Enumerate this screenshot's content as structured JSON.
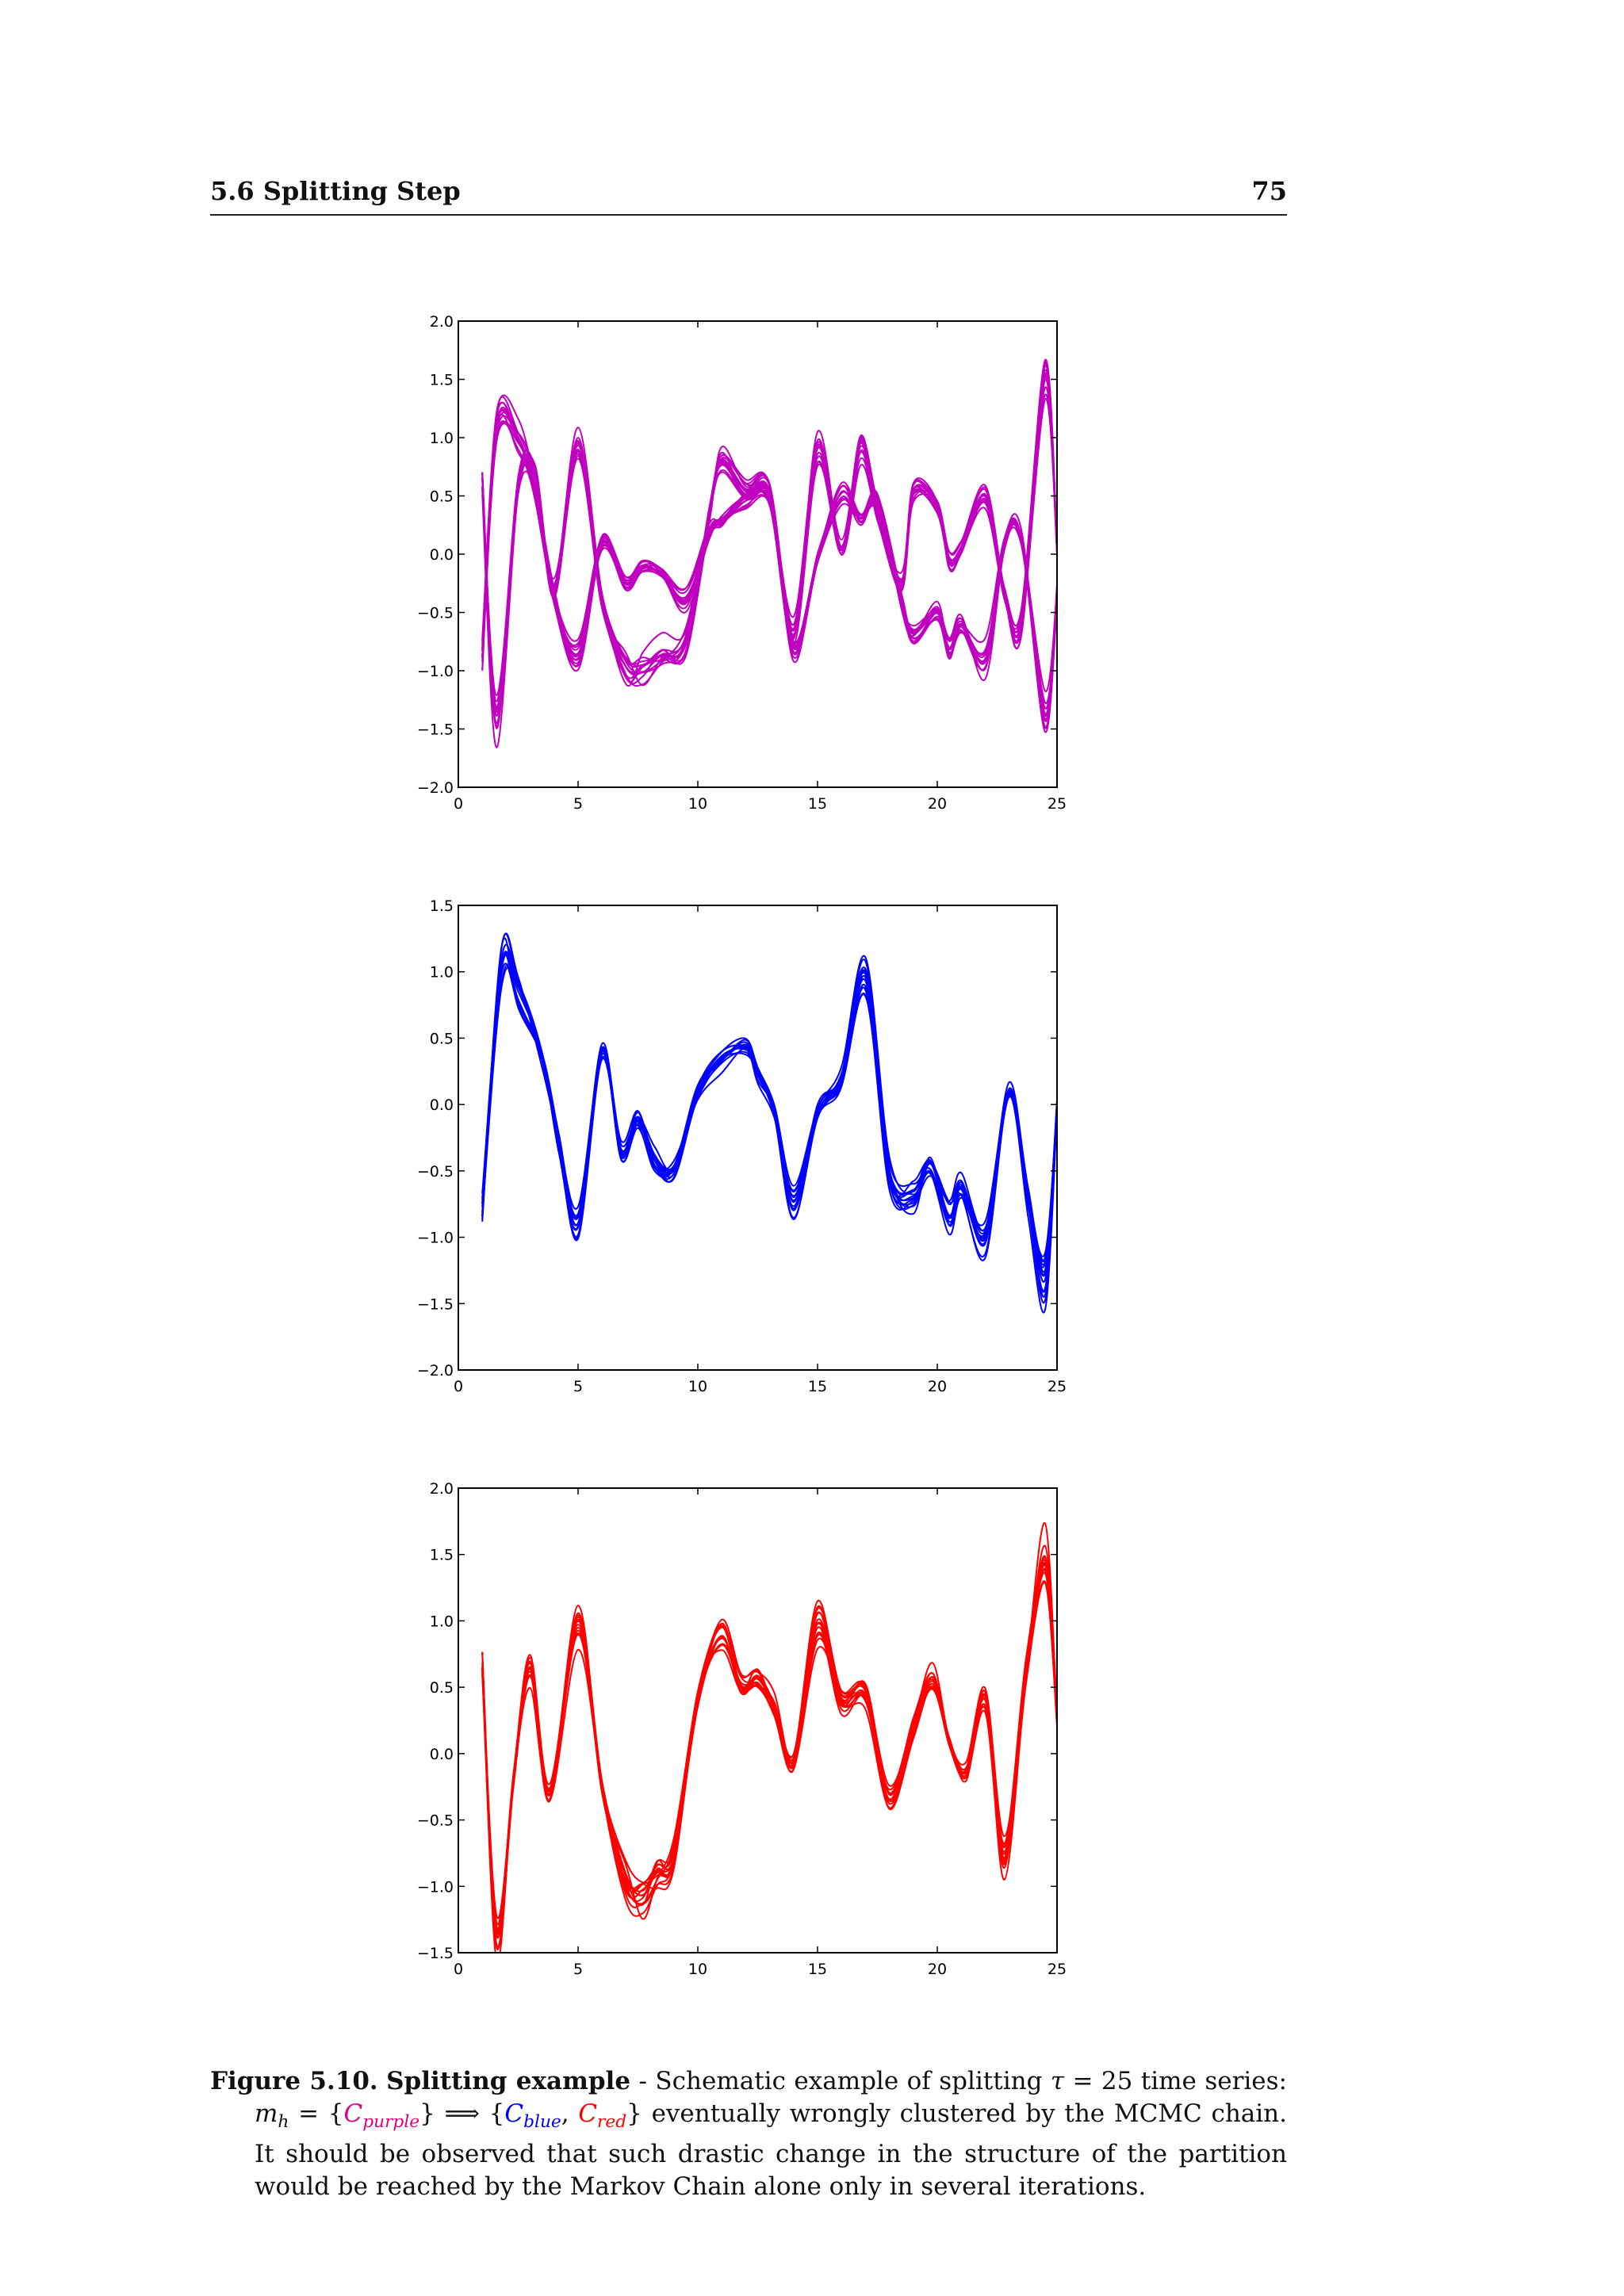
{
  "header": {
    "section": "5.6 Splitting Step",
    "page": "75"
  },
  "colors": {
    "purple": "#bf00bf",
    "blue": "#0000ff",
    "red": "#ff0000"
  },
  "chart_data": [
    {
      "type": "line",
      "color": "#bf00bf",
      "xlim": [
        0,
        25
      ],
      "ylim": [
        -2.0,
        2.0
      ],
      "xticks": [
        "0",
        "5",
        "10",
        "15",
        "20",
        "25"
      ],
      "yticks": [
        "−2.0",
        "−1.5",
        "−1.0",
        "−0.5",
        "0.0",
        "0.5",
        "1.0",
        "1.5",
        "2.0"
      ],
      "series": [
        {
          "x": [
            1,
            1.6,
            2.5,
            3.2,
            4,
            5,
            6,
            7,
            7.7,
            8.5,
            9.5,
            10.5,
            11,
            12,
            13,
            14,
            15,
            16,
            16.8,
            17.5,
            18.5,
            19,
            20,
            20.5,
            21,
            22,
            22.8,
            23.5,
            24.5,
            25
          ],
          "y": [
            -0.85,
            1.05,
            0.95,
            0.55,
            -0.35,
            -0.85,
            0.1,
            -0.25,
            -0.1,
            -0.15,
            -0.4,
            0.2,
            0.3,
            0.45,
            0.5,
            -0.65,
            0.85,
            0.05,
            0.95,
            0.35,
            -0.25,
            0.55,
            0.4,
            -0.05,
            0.05,
            0.5,
            -0.3,
            -0.6,
            1.5,
            0.05
          ]
        },
        {
          "x": [
            1,
            1.6,
            2.5,
            3.2,
            4,
            5,
            6,
            7,
            7.7,
            8.5,
            9.5,
            10.5,
            11,
            12,
            13,
            14,
            15,
            16,
            16.8,
            17.5,
            18.5,
            19,
            20,
            20.5,
            21,
            22,
            22.8,
            23.5,
            24.5,
            25
          ],
          "y": [
            0.65,
            -1.4,
            0.6,
            0.65,
            -0.3,
            0.95,
            -0.4,
            -0.95,
            -1.0,
            -0.85,
            -0.75,
            0.4,
            0.8,
            0.55,
            0.55,
            -0.8,
            -0.05,
            0.55,
            0.3,
            0.45,
            -0.4,
            -0.7,
            -0.5,
            -0.8,
            -0.6,
            -0.9,
            0.1,
            0.15,
            -1.4,
            -0.35
          ]
        }
      ]
    },
    {
      "type": "line",
      "color": "#0000ff",
      "xlim": [
        0,
        25
      ],
      "ylim": [
        -2.0,
        1.5
      ],
      "xticks": [
        "0",
        "5",
        "10",
        "15",
        "20",
        "25"
      ],
      "yticks": [
        "−2.0",
        "−1.5",
        "−1.0",
        "−0.5",
        "0.0",
        "0.5",
        "1.0",
        "1.5"
      ],
      "series": [
        {
          "x": [
            1,
            1.8,
            2.5,
            3.5,
            4.2,
            5,
            6,
            6.8,
            7.5,
            8.2,
            9,
            10,
            11,
            12,
            12.5,
            13.2,
            14,
            15,
            16,
            17,
            18,
            19,
            19.7,
            20.5,
            21,
            22,
            23,
            23.8,
            24.5,
            25
          ],
          "y": [
            -0.8,
            1.05,
            0.85,
            0.35,
            -0.3,
            -0.9,
            0.4,
            -0.35,
            -0.1,
            -0.4,
            -0.5,
            0.1,
            0.35,
            0.45,
            0.25,
            -0.05,
            -0.75,
            -0.05,
            0.2,
            0.95,
            -0.5,
            -0.7,
            -0.45,
            -0.85,
            -0.6,
            -1.0,
            0.1,
            -0.7,
            -1.3,
            0.0
          ]
        }
      ]
    },
    {
      "type": "line",
      "color": "#ff0000",
      "xlim": [
        0,
        25
      ],
      "ylim": [
        -1.5,
        2.0
      ],
      "xticks": [
        "0",
        "5",
        "10",
        "15",
        "20",
        "25"
      ],
      "yticks": [
        "−1.5",
        "−1.0",
        "−0.5",
        "0.0",
        "0.5",
        "1.0",
        "1.5",
        "2.0"
      ],
      "series": [
        {
          "x": [
            1,
            1.6,
            2.3,
            3,
            3.8,
            5,
            6,
            7,
            7.7,
            8.3,
            9,
            10,
            11,
            11.8,
            12.5,
            13.2,
            14,
            15,
            16,
            17,
            18,
            19,
            19.8,
            20.5,
            21.2,
            22,
            22.8,
            23.7,
            24.5,
            25
          ],
          "y": [
            0.65,
            -1.35,
            -0.2,
            0.65,
            -0.3,
            0.95,
            -0.25,
            -0.95,
            -1.05,
            -0.85,
            -0.75,
            0.4,
            0.9,
            0.5,
            0.55,
            0.35,
            -0.05,
            1.0,
            0.4,
            0.45,
            -0.35,
            0.2,
            0.55,
            0.1,
            -0.15,
            0.4,
            -0.8,
            0.6,
            1.5,
            0.3
          ]
        }
      ]
    }
  ],
  "caption": {
    "label": "Figure 5.10.",
    "title": "Splitting example",
    "sep": " - ",
    "text1": "Schematic example of splitting ",
    "tau": "τ",
    "eq": " = 25 time series:",
    "m": "m",
    "h": "h",
    "set1": " = {",
    "C1": "C",
    "purple": "purple",
    "set2": "} ⟹ {",
    "C2": "C",
    "blue": "blue",
    "comma": ", ",
    "C3": "C",
    "red": "red",
    "set3": "}",
    "text2": " eventually wrongly clustered by the MCMC chain. It should be observed that such drastic change in the structure of the partition would be reached by the Markov Chain alone only in several iterations."
  }
}
